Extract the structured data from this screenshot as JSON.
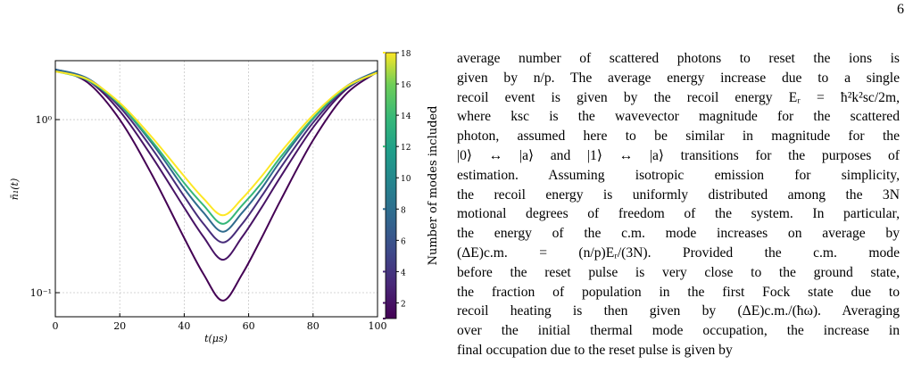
{
  "page_number": "6",
  "chart_data": {
    "type": "line",
    "xlabel": "t(μs)",
    "ylabel": "n̄₁(t)",
    "x": [
      0,
      10,
      20,
      30,
      40,
      46,
      52,
      58,
      64,
      70,
      80,
      90,
      100
    ],
    "xlim": [
      0,
      100
    ],
    "xticks": [
      0,
      20,
      40,
      60,
      80,
      100
    ],
    "ylim": [
      0.0726,
      2.19
    ],
    "yscale": "log",
    "yticks": [
      {
        "value": 0.1,
        "label": "10⁻¹"
      },
      {
        "value": 1,
        "label": "10⁰"
      }
    ],
    "grid": true,
    "series": [
      {
        "modes": 1,
        "color": "#440154",
        "values": [
          1.95,
          1.64,
          1.0,
          0.48,
          0.207,
          0.128,
          0.09,
          0.128,
          0.207,
          0.344,
          0.76,
          1.39,
          1.89
        ]
      },
      {
        "modes": 2,
        "color": "#471365",
        "values": [
          1.95,
          1.69,
          1.12,
          0.61,
          0.31,
          0.21,
          0.155,
          0.21,
          0.31,
          0.47,
          0.9,
          1.48,
          1.91
        ]
      },
      {
        "modes": 4,
        "color": "#472c7a",
        "values": [
          1.95,
          1.71,
          1.18,
          0.68,
          0.36,
          0.25,
          0.195,
          0.25,
          0.36,
          0.53,
          0.96,
          1.51,
          1.91
        ]
      },
      {
        "modes": 8,
        "color": "#2f6b8e",
        "values": [
          1.95,
          1.73,
          1.22,
          0.73,
          0.4,
          0.29,
          0.225,
          0.29,
          0.4,
          0.58,
          1.01,
          1.54,
          1.91
        ]
      },
      {
        "modes": 12,
        "color": "#35b779",
        "values": [
          1.9,
          1.69,
          1.22,
          0.75,
          0.43,
          0.32,
          0.25,
          0.32,
          0.43,
          0.61,
          1.02,
          1.52,
          1.87
        ]
      },
      {
        "modes": 18,
        "color": "#fde725",
        "values": [
          1.9,
          1.71,
          1.25,
          0.79,
          0.47,
          0.35,
          0.28,
          0.35,
          0.47,
          0.65,
          1.06,
          1.54,
          1.87
        ]
      }
    ],
    "clabel": "Number of modes included",
    "clim": [
      1,
      18
    ],
    "cticks": [
      2,
      4,
      6,
      8,
      10,
      12,
      14,
      16,
      18
    ]
  },
  "text_lines": [
    "average number of scattered photons to reset the ions is",
    "given by n/p. The average energy increase due to a single",
    "recoil event is given by the recoil energy Eᵣ = ħ²k²sc/2m,",
    "where ksc is the wavevector magnitude for the scattered",
    "photon, assumed here to be similar in magnitude for the",
    "|0⟩ ↔ |a⟩ and |1⟩ ↔ |a⟩ transitions for the purposes of",
    "estimation. Assuming isotropic emission for simplicity,",
    "the recoil energy is uniformly distributed among the 3N",
    "motional degrees of freedom of the system. In particular,",
    "the energy of the c.m. mode increases on average by",
    "(ΔE)c.m. = (n/p)Eᵣ/(3N). Provided the c.m. mode",
    "before the reset pulse is very close to the ground state,",
    "the fraction of population in the first Fock state due to",
    "recoil heating is then given by (ΔE)c.m./(ħω). Averaging",
    "over the initial thermal mode occupation, the increase in",
    "final occupation due to the reset pulse is given by"
  ]
}
